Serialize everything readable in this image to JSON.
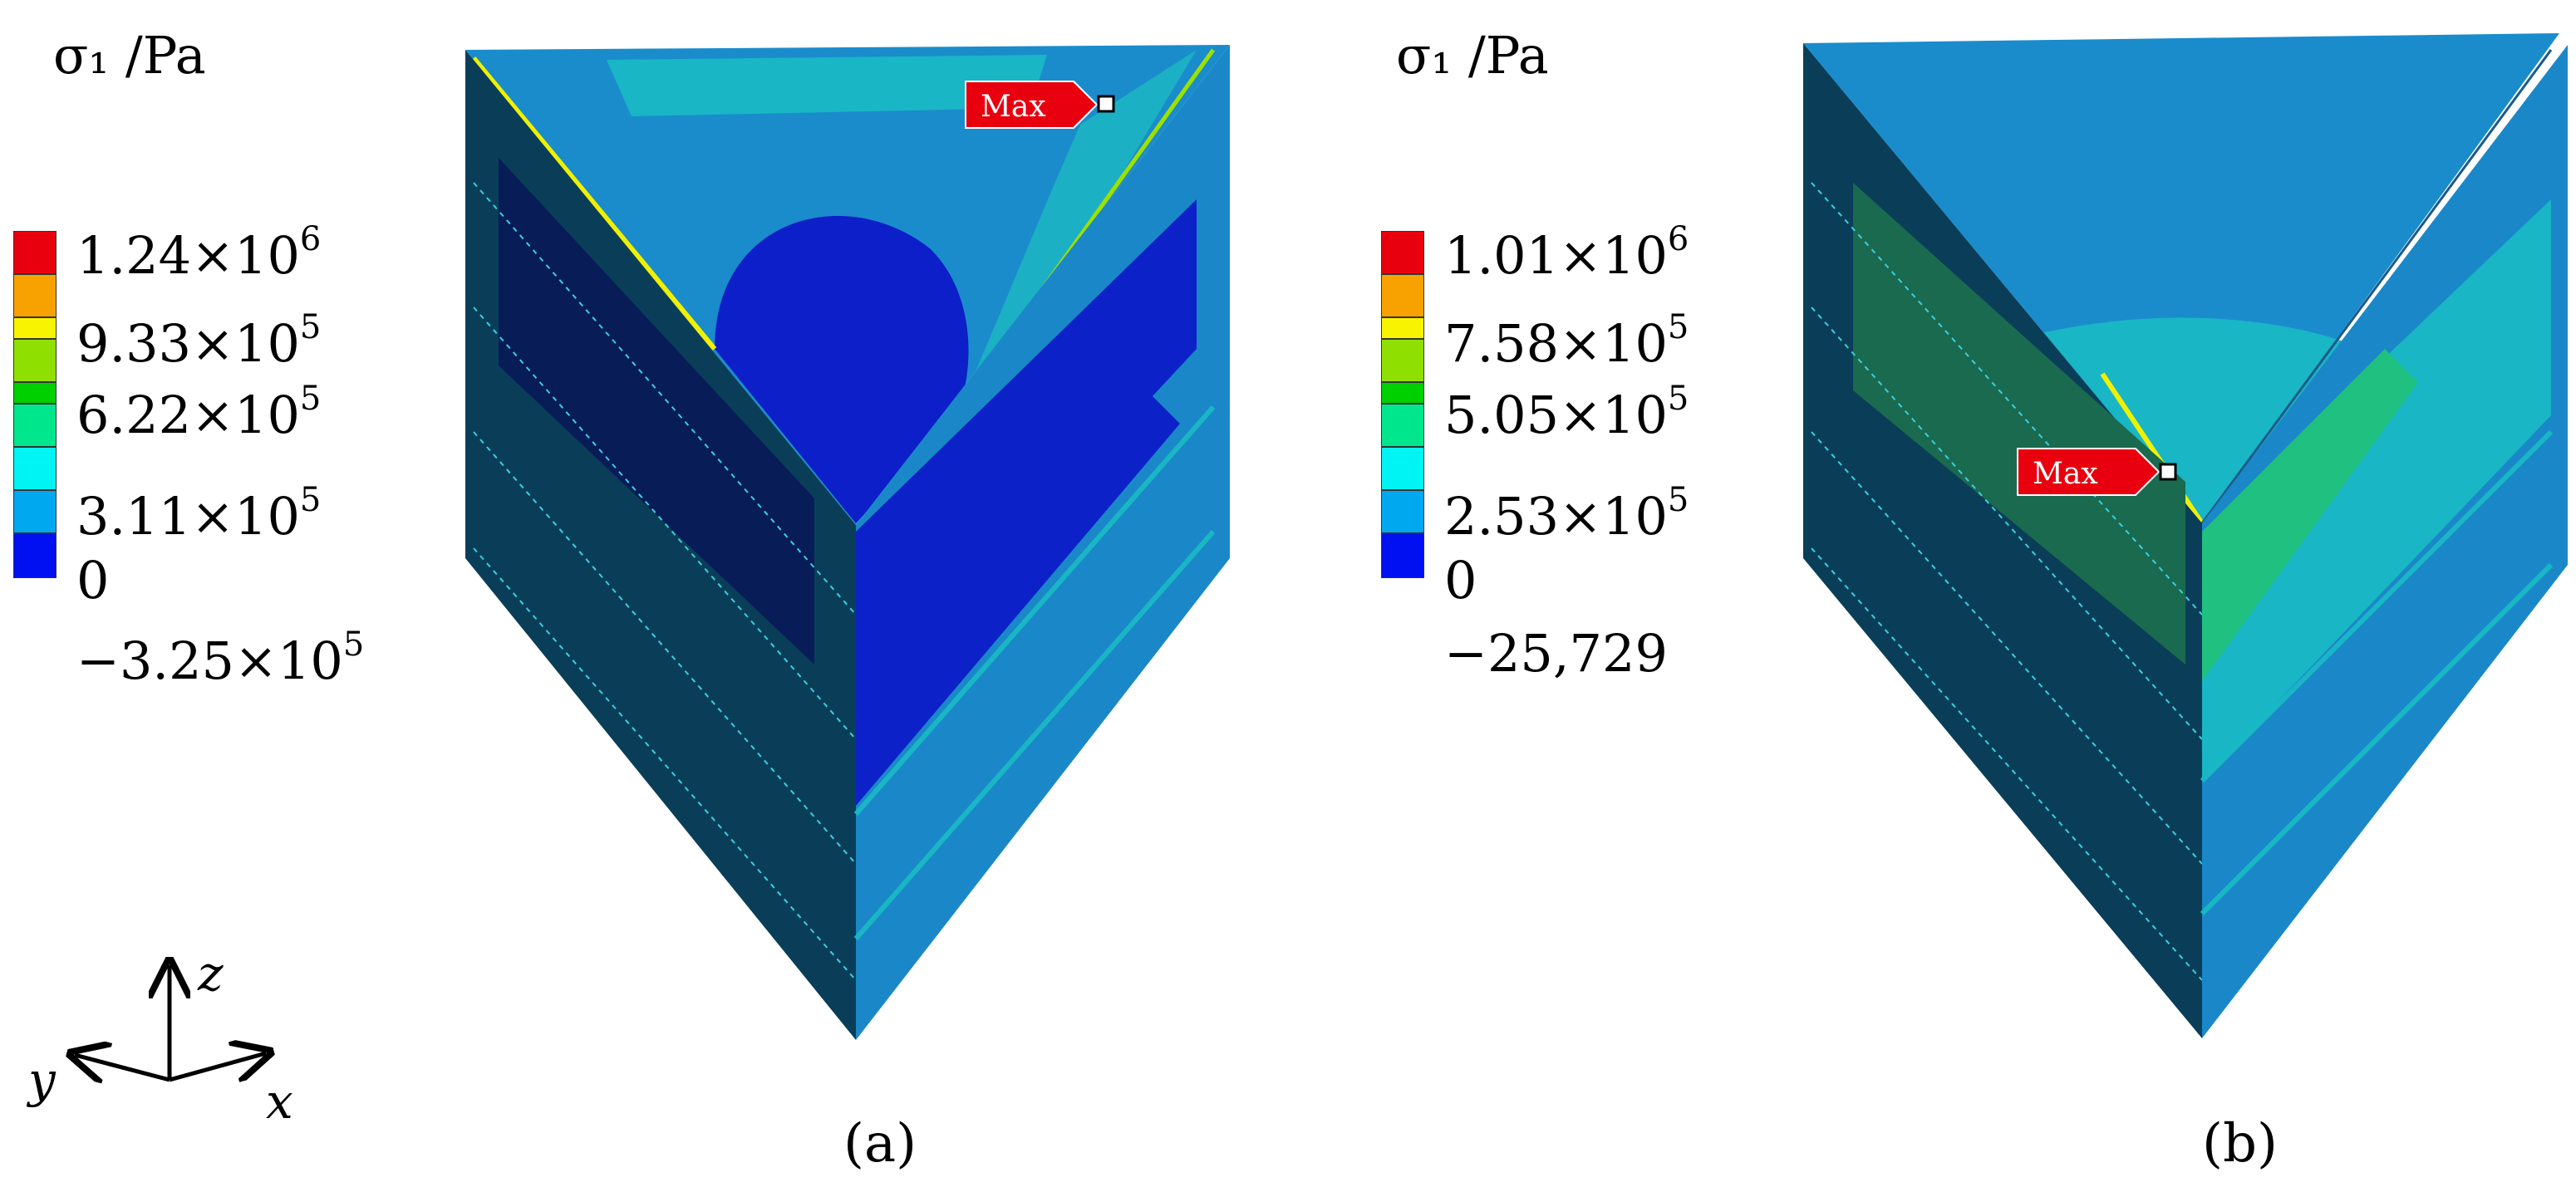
{
  "panels": [
    {
      "id": "a",
      "legend_title": "σ₁ /Pa",
      "legend_values": [
        "1.24×10",
        "9.33×10",
        "6.22×10",
        "3.11×10",
        "0",
        "−3.25×10"
      ],
      "legend_exponents": [
        "6",
        "5",
        "5",
        "5",
        "",
        "5"
      ],
      "legend_colors": [
        "#e8000e",
        "#f7a200",
        "#f8f400",
        "#8fe000",
        "#00d000",
        "#00e68c",
        "#00f4f4",
        "#00a8f0",
        "#0010f0"
      ],
      "max_label": "Max",
      "caption": "(a)"
    },
    {
      "id": "b",
      "legend_title": "σ₁ /Pa",
      "legend_values": [
        "1.01×10",
        "7.58×10",
        "5.05×10",
        "2.53×10",
        "0",
        "−25,729"
      ],
      "legend_exponents": [
        "6",
        "5",
        "5",
        "5",
        "",
        ""
      ],
      "legend_colors": [
        "#e8000e",
        "#f7a200",
        "#f8f400",
        "#8fe000",
        "#00d000",
        "#00e68c",
        "#00f4f4",
        "#00a8f0",
        "#0010f0"
      ],
      "max_label": "Max",
      "caption": "(b)"
    }
  ],
  "axes": {
    "z": "z",
    "y": "y",
    "x": "x"
  }
}
